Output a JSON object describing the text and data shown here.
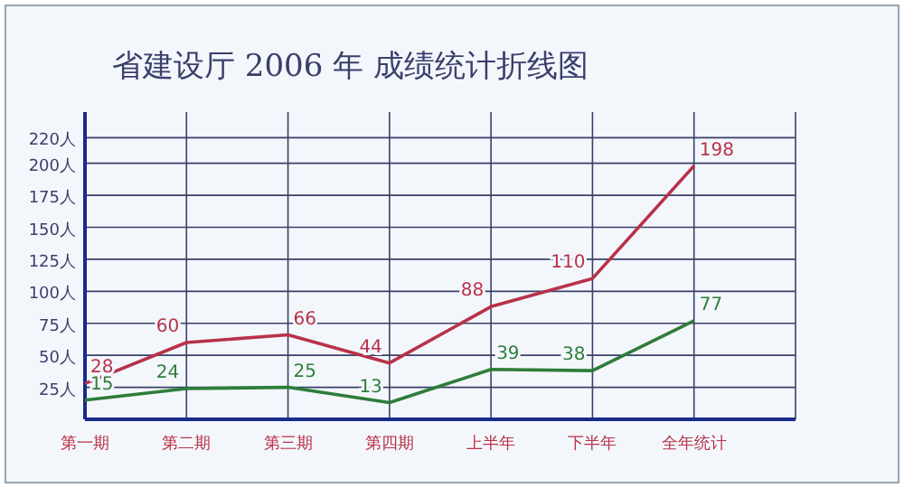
{
  "chart_data": {
    "type": "line",
    "title": "省建设厅 2006 年 成绩统计折线图",
    "categories": [
      "第一期",
      "第二期",
      "第三期",
      "第四期",
      "上半年",
      "下半年",
      "全年统计"
    ],
    "series": [
      {
        "color": "#b8324a",
        "values": [
          28,
          60,
          66,
          44,
          88,
          110,
          198
        ]
      },
      {
        "color": "#2e7d3a",
        "values": [
          15,
          24,
          25,
          13,
          39,
          38,
          77
        ]
      }
    ],
    "ylim": [
      0,
      240
    ],
    "yticks": [
      {
        "value": 25,
        "label": "25人"
      },
      {
        "value": 50,
        "label": "50人"
      },
      {
        "value": 75,
        "label": "75人"
      },
      {
        "value": 100,
        "label": "100人"
      },
      {
        "value": 125,
        "label": "125人"
      },
      {
        "value": 150,
        "label": "150人"
      },
      {
        "value": 175,
        "label": "175人"
      },
      {
        "value": 200,
        "label": "200人"
      },
      {
        "value": 220,
        "label": "220人"
      }
    ],
    "grid": true,
    "data_labels": true,
    "marker": "none",
    "line_style": "solid"
  }
}
